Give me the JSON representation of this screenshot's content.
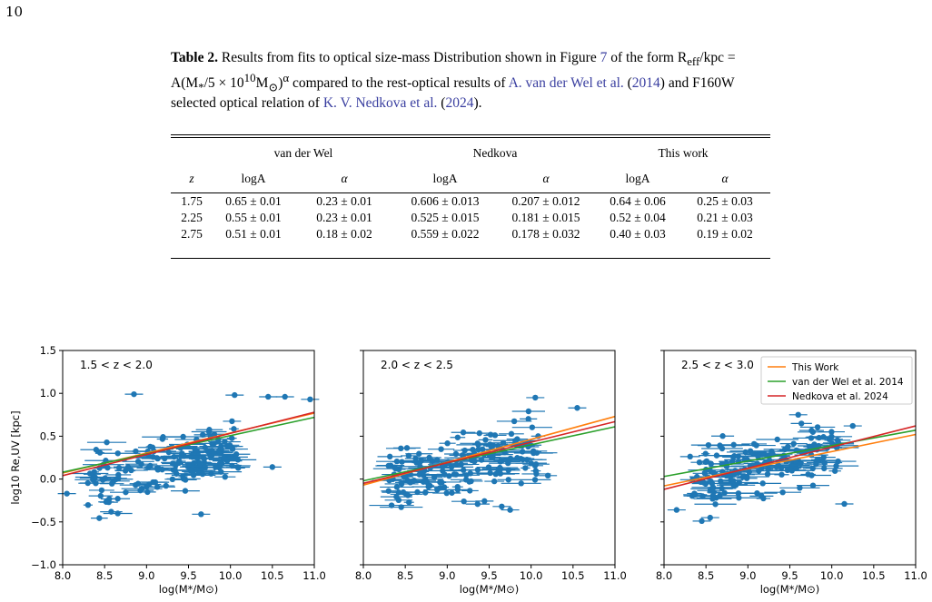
{
  "page_number": "10",
  "caption": {
    "label": "Table 2.",
    "text_1": " Results from fits to optical size-mass Distribution shown in Figure ",
    "figure_ref": "7",
    "text_2": " of the form R",
    "eff_sub": "eff",
    "text_3": "/kpc = A(M",
    "star_sub": "*",
    "text_4": "/5 × 10",
    "exp10": "10",
    "text_5": "M",
    "sun_sub": "⊙",
    "text_6": ")",
    "alpha_sup": "α",
    "text_7": " compared to the rest-optical results of ",
    "cite_1": "A. van der Wel et al.",
    "text_8": " (",
    "cite_1_year": "2014",
    "text_9": ") and F160W selected optical relation of ",
    "cite_2": "K. V. Nedkova et al.",
    "text_10": " (",
    "cite_2_year": "2024",
    "text_11": ")."
  },
  "table": {
    "groups": [
      "van der Wel",
      "Nedkova",
      "This work"
    ],
    "columns": [
      "z",
      "logA",
      "α",
      "logA",
      "α",
      "logA",
      "α"
    ],
    "rows": [
      [
        "1.75",
        "0.65 ± 0.01",
        "0.23 ± 0.01",
        "0.606 ± 0.013",
        "0.207 ± 0.012",
        "0.64 ± 0.06",
        "0.25 ± 0.03"
      ],
      [
        "2.25",
        "0.55 ± 0.01",
        "0.23 ± 0.01",
        "0.525 ± 0.015",
        "0.181 ± 0.015",
        "0.52 ± 0.04",
        "0.21 ± 0.03"
      ],
      [
        "2.75",
        "0.51 ± 0.01",
        "0.18 ± 0.02",
        "0.559 ± 0.022",
        "0.178 ± 0.032",
        "0.40 ± 0.03",
        "0.19 ± 0.02"
      ]
    ]
  },
  "chart_data": [
    {
      "type": "scatter",
      "panel_label": "1.5 < z < 2.0",
      "xlabel": "log(M*/M⊙)",
      "ylabel": "log10 Re,UV [kpc]",
      "xlim": [
        8.0,
        11.0
      ],
      "ylim": [
        -1.0,
        1.5
      ],
      "xticks": [
        "8.0",
        "8.5",
        "9.0",
        "9.5",
        "10.0",
        "10.5",
        "11.0"
      ],
      "yticks": [
        "−1.0",
        "−0.5",
        "0.0",
        "0.5",
        "1.0",
        "1.5"
      ],
      "lines": [
        {
          "name": "This Work",
          "color": "#ff7f0e",
          "x": [
            8.0,
            11.0
          ],
          "y": [
            0.07,
            0.77
          ]
        },
        {
          "name": "van der Wel et al. 2014",
          "color": "#2ca02c",
          "x": [
            8.0,
            11.0
          ],
          "y": [
            0.08,
            0.72
          ]
        },
        {
          "name": "Nedkova et al. 2024",
          "color": "#d62728",
          "x": [
            8.0,
            11.0
          ],
          "y": [
            0.04,
            0.78
          ]
        }
      ],
      "highlight_points": [
        {
          "x": 8.85,
          "y": 0.99
        },
        {
          "x": 10.05,
          "y": 0.98
        },
        {
          "x": 10.45,
          "y": 0.96
        },
        {
          "x": 10.65,
          "y": 0.96
        },
        {
          "x": 10.95,
          "y": 0.93
        },
        {
          "x": 9.65,
          "y": -0.41
        },
        {
          "x": 8.55,
          "y": -0.27
        },
        {
          "x": 8.05,
          "y": -0.17
        },
        {
          "x": 10.5,
          "y": 0.14
        }
      ]
    },
    {
      "type": "scatter",
      "panel_label": "2.0 < z < 2.5",
      "xlabel": "log(M*/M⊙)",
      "ylabel": "",
      "xlim": [
        8.0,
        11.0
      ],
      "ylim": [
        -1.0,
        1.5
      ],
      "xticks": [
        "8.0",
        "8.5",
        "9.0",
        "9.5",
        "10.0",
        "10.5",
        "11.0"
      ],
      "lines": [
        {
          "name": "This Work",
          "color": "#ff7f0e",
          "x": [
            8.0,
            11.0
          ],
          "y": [
            -0.07,
            0.73
          ]
        },
        {
          "name": "van der Wel et al. 2014",
          "color": "#2ca02c",
          "x": [
            8.0,
            11.0
          ],
          "y": [
            -0.02,
            0.61
          ]
        },
        {
          "name": "Nedkova et al. 2024",
          "color": "#d62728",
          "x": [
            8.0,
            11.0
          ],
          "y": [
            -0.05,
            0.67
          ]
        }
      ],
      "highlight_points": [
        {
          "x": 10.05,
          "y": 0.95
        },
        {
          "x": 10.55,
          "y": 0.83
        },
        {
          "x": 9.75,
          "y": -0.36
        },
        {
          "x": 9.65,
          "y": -0.32
        },
        {
          "x": 10.2,
          "y": 0.04
        }
      ]
    },
    {
      "type": "scatter",
      "panel_label": "2.5 < z < 3.0",
      "xlabel": "log(M*/M⊙)",
      "ylabel": "",
      "xlim": [
        8.0,
        11.0
      ],
      "ylim": [
        -1.0,
        1.5
      ],
      "xticks": [
        "8.0",
        "8.5",
        "9.0",
        "9.5",
        "10.0",
        "10.5",
        "11.0"
      ],
      "legend": [
        "This Work",
        "van der Wel et al. 2014",
        "Nedkova et al. 2024"
      ],
      "legend_position": "top-right",
      "lines": [
        {
          "name": "This Work",
          "color": "#ff7f0e",
          "x": [
            8.0,
            11.0
          ],
          "y": [
            -0.08,
            0.52
          ]
        },
        {
          "name": "van der Wel et al. 2014",
          "color": "#2ca02c",
          "x": [
            8.0,
            11.0
          ],
          "y": [
            0.03,
            0.57
          ]
        },
        {
          "name": "Nedkova et al. 2024",
          "color": "#d62728",
          "x": [
            8.0,
            11.0
          ],
          "y": [
            -0.12,
            0.62
          ]
        }
      ],
      "highlight_points": [
        {
          "x": 8.15,
          "y": -0.36
        },
        {
          "x": 8.45,
          "y": -0.49
        },
        {
          "x": 8.55,
          "y": -0.45
        },
        {
          "x": 10.15,
          "y": -0.29
        },
        {
          "x": 10.25,
          "y": 0.62
        },
        {
          "x": 9.6,
          "y": 0.75
        }
      ]
    }
  ],
  "colors": {
    "points": "#1f77b4",
    "cite": "#3a3fa0"
  }
}
